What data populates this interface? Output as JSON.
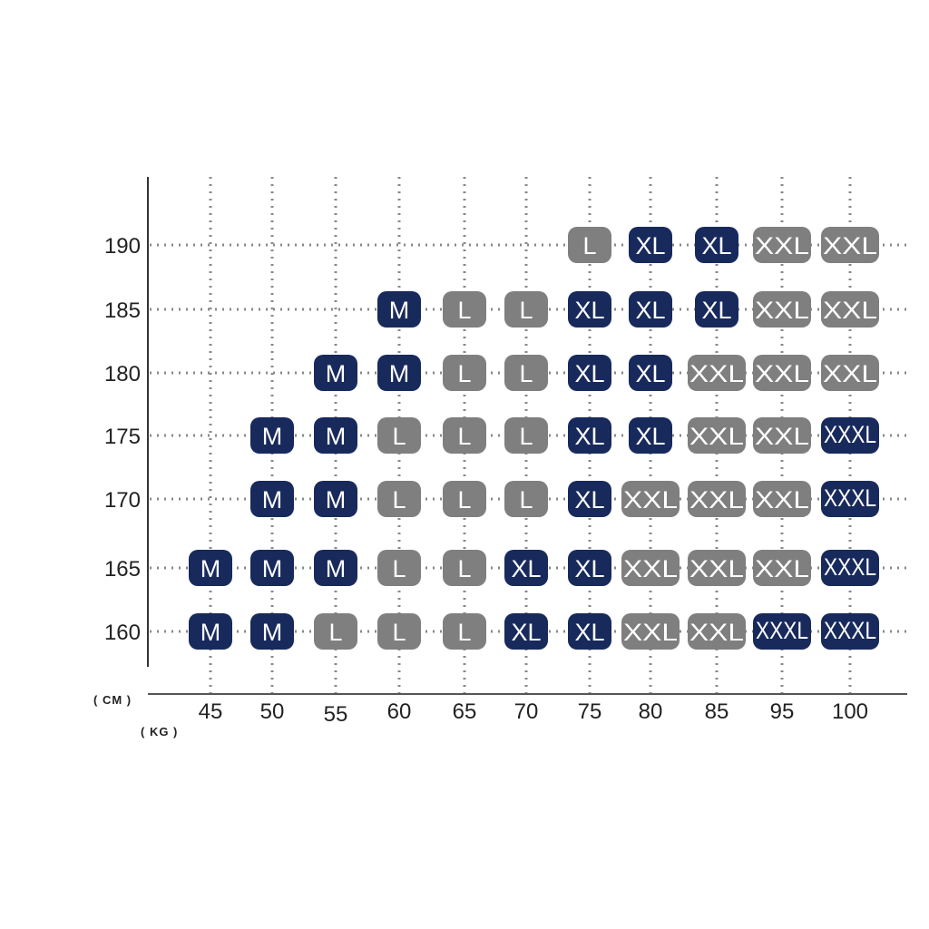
{
  "chart_data": {
    "type": "heatmap",
    "title": "",
    "xlabel": "( KG )",
    "ylabel": "( CM )",
    "x_categories": [
      "45",
      "50",
      "55",
      "60",
      "65",
      "70",
      "75",
      "80",
      "85",
      "95",
      "100"
    ],
    "y_categories": [
      "190",
      "185",
      "180",
      "175",
      "170",
      "165",
      "160"
    ],
    "grid": true,
    "colors": {
      "M": "#182a5c",
      "L": "#7f7f7f",
      "XL": "#182a5c",
      "XXL": "#7f7f7f",
      "XXXL": "#182a5c"
    },
    "cells": {
      "190": {
        "75": "L",
        "80": "XL",
        "85": "XL",
        "95": "XXL",
        "100": "XXL"
      },
      "185": {
        "60": "M",
        "65": "L",
        "70": "L",
        "75": "XL",
        "80": "XL",
        "85": "XL",
        "95": "XXL",
        "100": "XXL"
      },
      "180": {
        "55": "M",
        "60": "M",
        "65": "L",
        "70": "L",
        "75": "XL",
        "80": "XL",
        "85": "XXL",
        "95": "XXL",
        "100": "XXL"
      },
      "175": {
        "50": "M",
        "55": "M",
        "60": "L",
        "65": "L",
        "70": "L",
        "75": "XL",
        "80": "XL",
        "85": "XXL",
        "95": "XXL",
        "100": "XXXL"
      },
      "170": {
        "50": "M",
        "55": "M",
        "60": "L",
        "65": "L",
        "70": "L",
        "75": "XL",
        "80": "XXL",
        "85": "XXL",
        "95": "XXL",
        "100": "XXXL"
      },
      "165": {
        "45": "M",
        "50": "M",
        "55": "M",
        "60": "L",
        "65": "L",
        "70": "XL",
        "75": "XL",
        "80": "XXL",
        "85": "XXL",
        "95": "XXL",
        "100": "XXXL"
      },
      "160": {
        "45": "M",
        "50": "M",
        "55": "L",
        "60": "L",
        "65": "L",
        "70": "XL",
        "75": "XL",
        "80": "XXL",
        "85": "XXL",
        "95": "XXXL",
        "100": "XXXL"
      }
    }
  }
}
